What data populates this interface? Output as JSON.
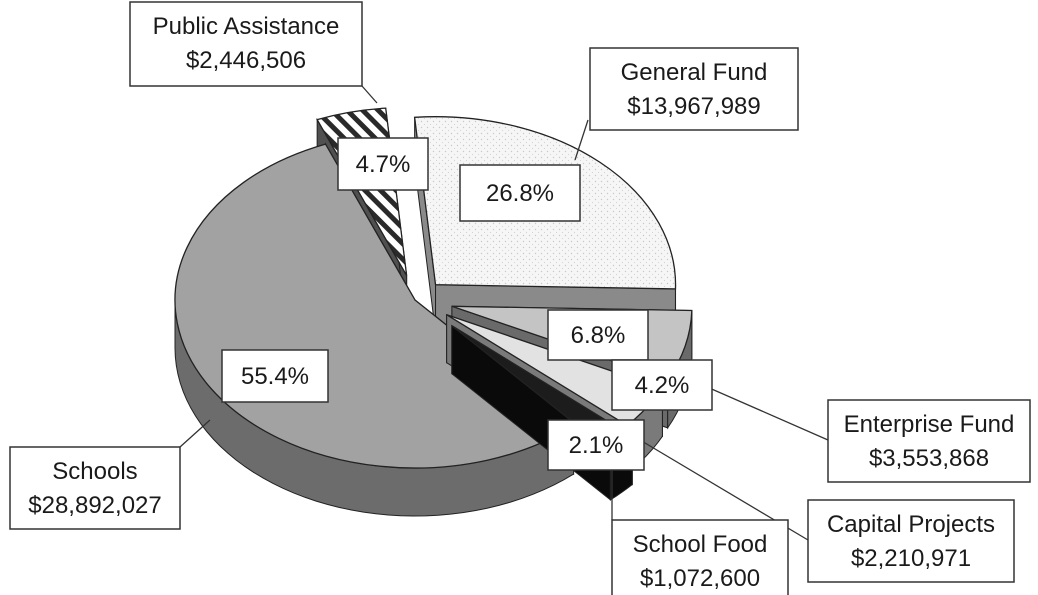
{
  "chart_data": {
    "type": "pie",
    "title": "",
    "style": "3d-exploded",
    "slices": [
      {
        "name": "General Fund",
        "value": 13967989,
        "amount_label": "$13,967,989",
        "percent": 26.8,
        "percent_label": "26.8%",
        "color": "#f4f4f4",
        "side_color": "#8a8a8a",
        "pattern": "dots"
      },
      {
        "name": "Enterprise Fund",
        "value": 3553868,
        "amount_label": "$3,553,868",
        "percent": 6.8,
        "percent_label": "6.8%",
        "color": "#c4c4c4",
        "side_color": "#6a6a6a",
        "pattern": "none"
      },
      {
        "name": "Capital Projects",
        "value": 2210971,
        "amount_label": "$2,210,971",
        "percent": 4.2,
        "percent_label": "4.2%",
        "color": "#e2e2e2",
        "side_color": "#7a7a7a",
        "pattern": "none"
      },
      {
        "name": "School Food",
        "value": 1072600,
        "amount_label": "$1,072,600",
        "percent": 2.1,
        "percent_label": "2.1%",
        "color": "#1c1c1c",
        "side_color": "#0a0a0a",
        "pattern": "none"
      },
      {
        "name": "Schools",
        "value": 28892027,
        "amount_label": "$28,892,027",
        "percent": 55.4,
        "percent_label": "55.4%",
        "color": "#a2a2a2",
        "side_color": "#6c6c6c",
        "pattern": "none"
      },
      {
        "name": "Public Assistance",
        "value": 2446506,
        "amount_label": "$2,446,506",
        "percent": 4.7,
        "percent_label": "4.7%",
        "color": "#ffffff",
        "side_color": "#505050",
        "pattern": "diagonal-stripes"
      }
    ]
  }
}
